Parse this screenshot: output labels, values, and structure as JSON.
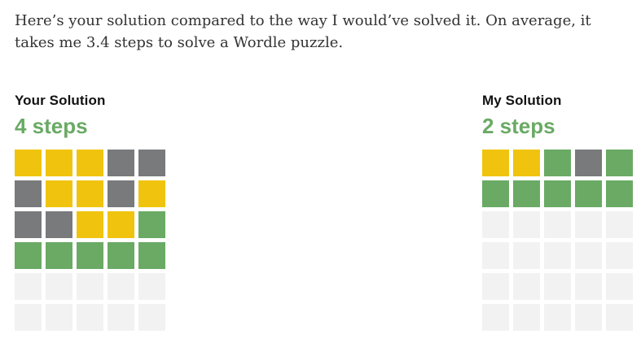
{
  "intro": {
    "line1": "Here’s your solution compared to the way I would’ve solved it. On average, it",
    "line2": "takes me 3.4 steps to solve a Wordle puzzle."
  },
  "colors": {
    "yellow": "#f0c40e",
    "gray": "#787a7c",
    "green": "#6aaa64",
    "empty": "#f2f2f2",
    "steps_text": "#6aaa64",
    "title_text": "#121212",
    "body_text": "#333333"
  },
  "your_solution": {
    "title": "Your Solution",
    "steps_label": "4 steps",
    "grid": [
      [
        "yellow",
        "yellow",
        "yellow",
        "gray",
        "gray"
      ],
      [
        "gray",
        "yellow",
        "yellow",
        "gray",
        "yellow"
      ],
      [
        "gray",
        "gray",
        "yellow",
        "yellow",
        "green"
      ],
      [
        "green",
        "green",
        "green",
        "green",
        "green"
      ],
      [
        "empty",
        "empty",
        "empty",
        "empty",
        "empty"
      ],
      [
        "empty",
        "empty",
        "empty",
        "empty",
        "empty"
      ]
    ]
  },
  "my_solution": {
    "title": "My Solution",
    "steps_label": "2 steps",
    "grid": [
      [
        "yellow",
        "yellow",
        "green",
        "gray",
        "green"
      ],
      [
        "green",
        "green",
        "green",
        "green",
        "green"
      ],
      [
        "empty",
        "empty",
        "empty",
        "empty",
        "empty"
      ],
      [
        "empty",
        "empty",
        "empty",
        "empty",
        "empty"
      ],
      [
        "empty",
        "empty",
        "empty",
        "empty",
        "empty"
      ],
      [
        "empty",
        "empty",
        "empty",
        "empty",
        "empty"
      ]
    ]
  }
}
